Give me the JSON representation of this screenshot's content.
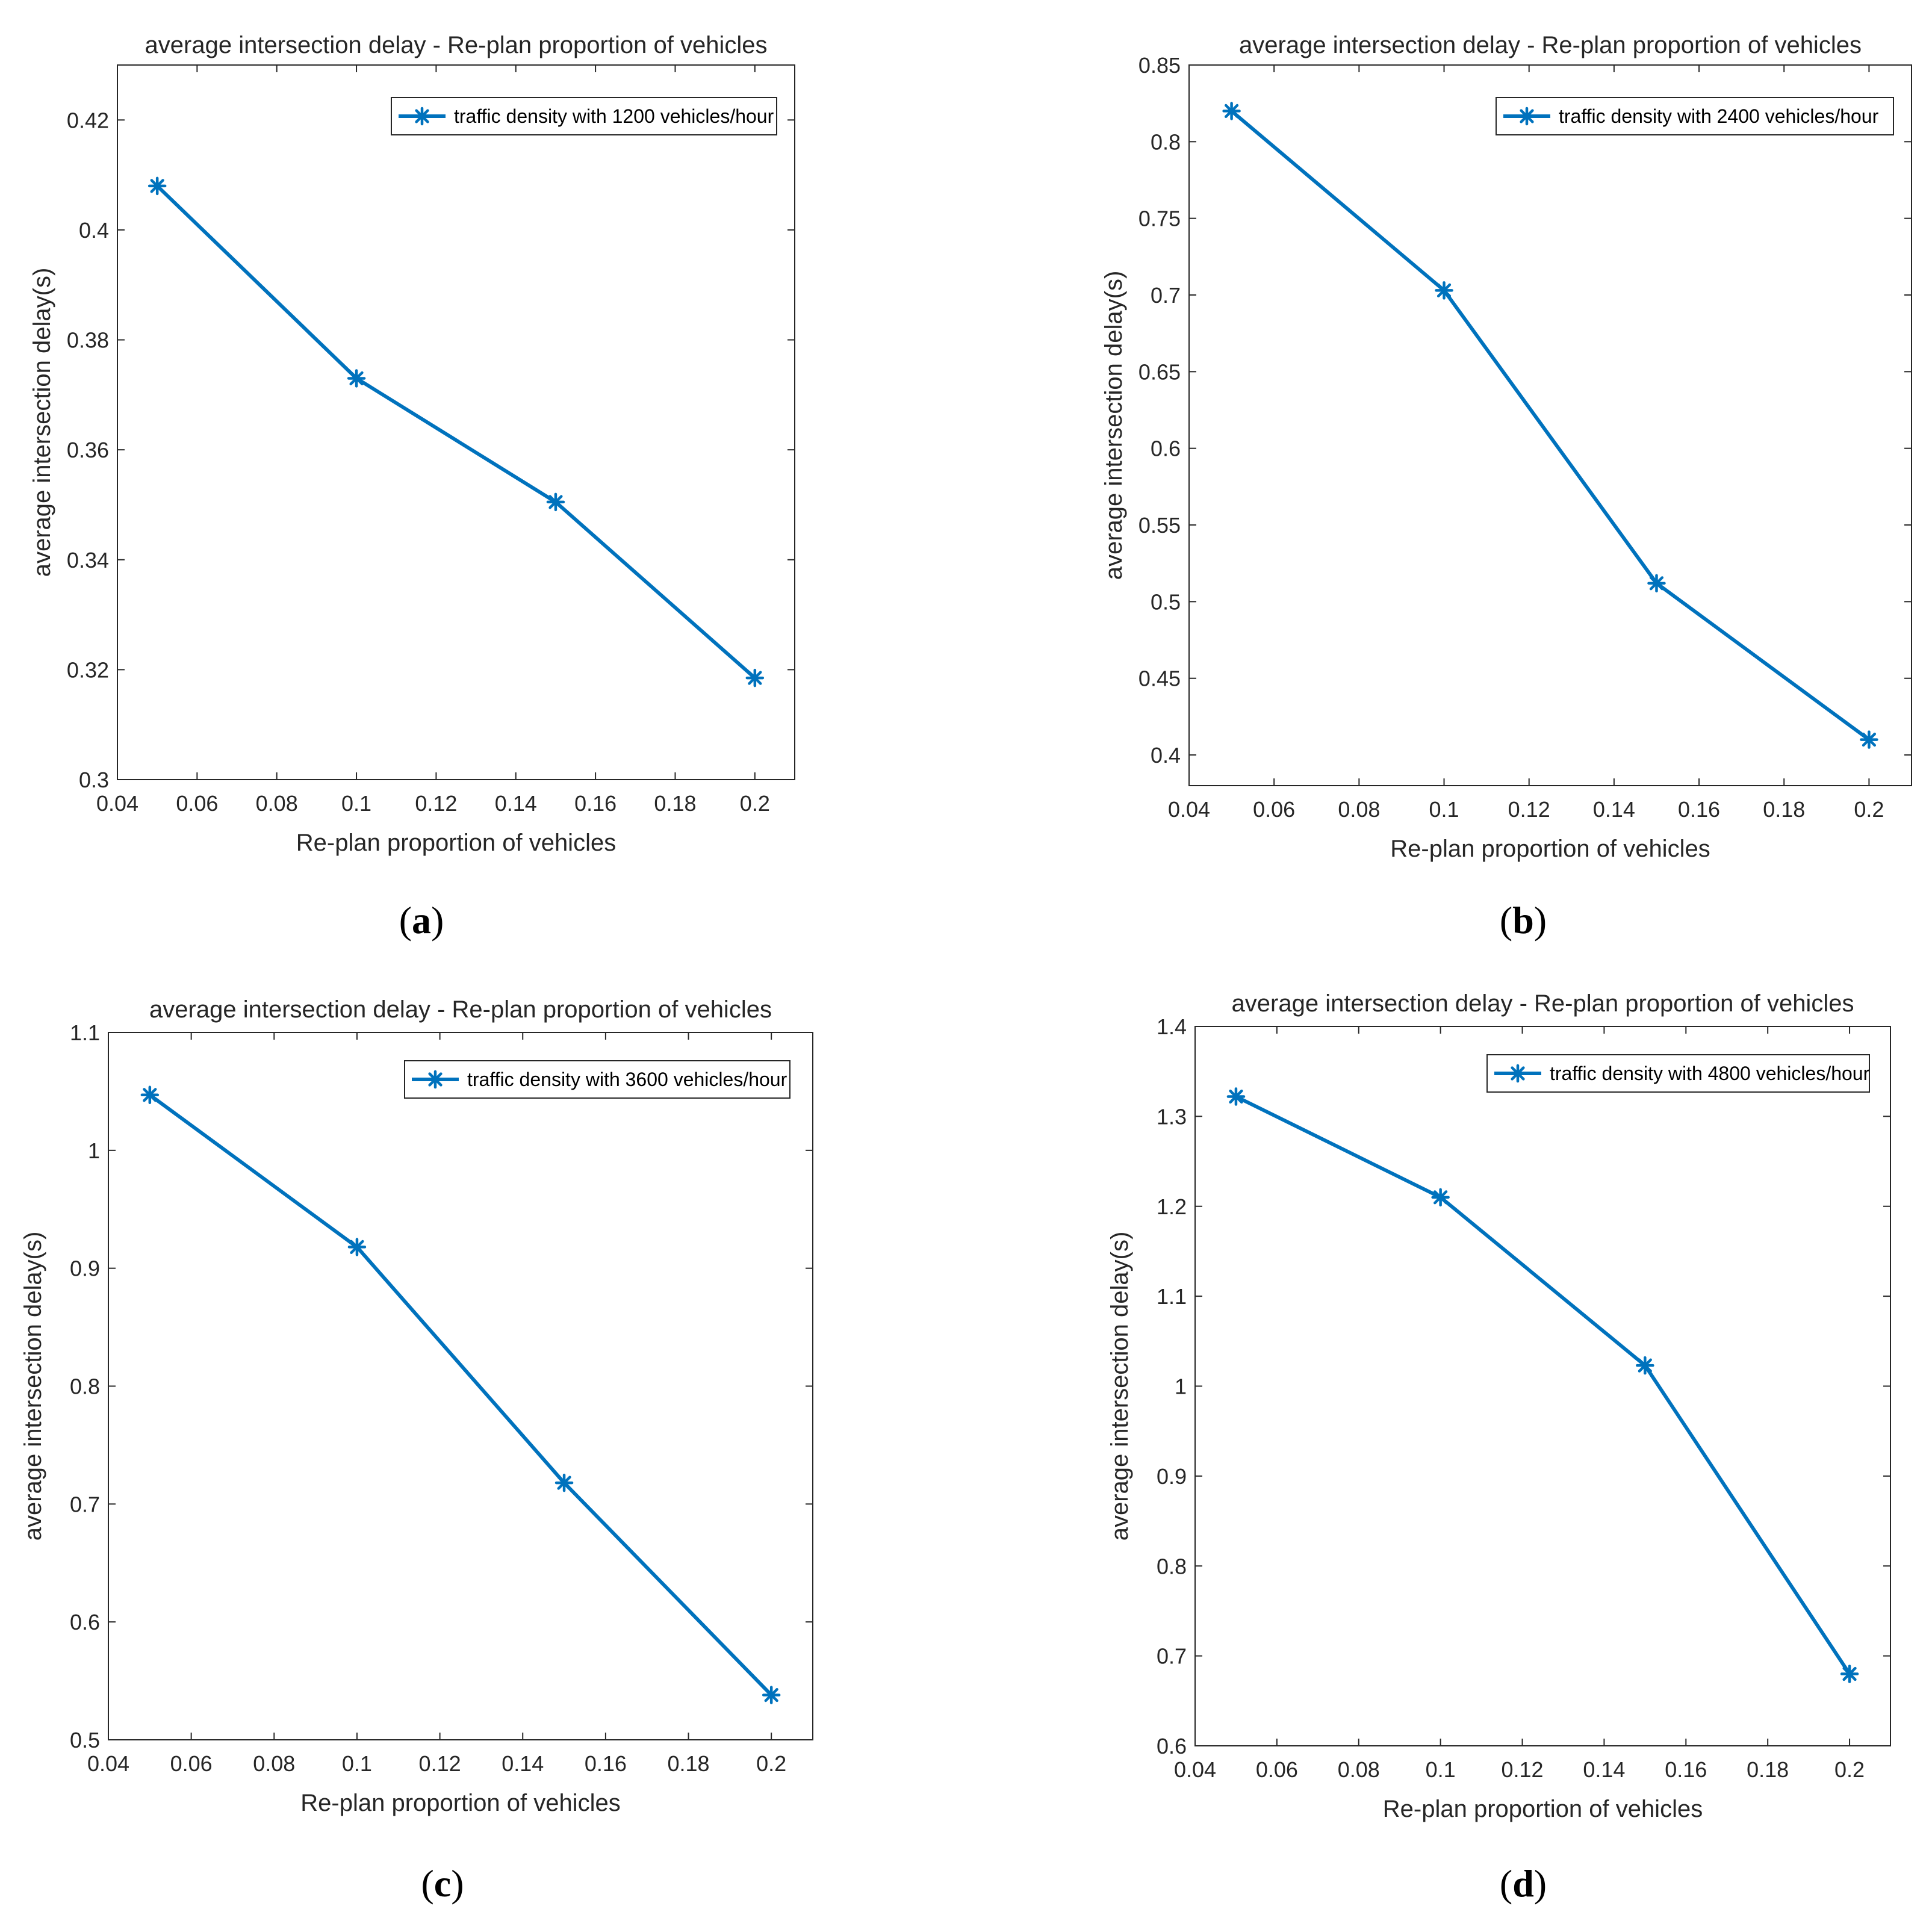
{
  "colors": {
    "series": "#0072BD",
    "axes": "#262626",
    "background": "#ffffff"
  },
  "chart_data": [
    {
      "panel": "(a)",
      "type": "line",
      "title": "average intersection delay - Re-plan proportion of vehicles",
      "xlabel": "Re-plan proportion of vehicles",
      "ylabel": "average intersection delay(s)",
      "xlim": [
        0.04,
        0.21
      ],
      "ylim": [
        0.3,
        0.43
      ],
      "xticks": [
        "0.04",
        "0.06",
        "0.08",
        "0.1",
        "0.12",
        "0.14",
        "0.16",
        "0.18",
        "0.2"
      ],
      "yticks": [
        "0.3",
        "0.32",
        "0.34",
        "0.36",
        "0.38",
        "0.4",
        "0.42"
      ],
      "legend_position": "top-right",
      "series": [
        {
          "name": "traffic density with 1200 vehicles/hour",
          "marker": "asterisk",
          "x": [
            0.05,
            0.1,
            0.15,
            0.2
          ],
          "y": [
            0.408,
            0.373,
            0.3505,
            0.3185
          ]
        }
      ]
    },
    {
      "panel": "(b)",
      "type": "line",
      "title": "average intersection delay - Re-plan proportion of vehicles",
      "xlabel": "Re-plan proportion of vehicles",
      "ylabel": "average intersection delay(s)",
      "xlim": [
        0.04,
        0.21
      ],
      "ylim": [
        0.38,
        0.85
      ],
      "xticks": [
        "0.04",
        "0.06",
        "0.08",
        "0.1",
        "0.12",
        "0.14",
        "0.16",
        "0.18",
        "0.2"
      ],
      "yticks": [
        "0.4",
        "0.45",
        "0.5",
        "0.55",
        "0.6",
        "0.65",
        "0.7",
        "0.75",
        "0.8",
        "0.85"
      ],
      "legend_position": "top-right",
      "series": [
        {
          "name": "traffic density with 2400 vehicles/hour",
          "marker": "asterisk",
          "x": [
            0.05,
            0.1,
            0.15,
            0.2
          ],
          "y": [
            0.82,
            0.703,
            0.512,
            0.41
          ]
        }
      ]
    },
    {
      "panel": "(c)",
      "type": "line",
      "title": "average intersection delay - Re-plan proportion of vehicles",
      "xlabel": "Re-plan proportion of vehicles",
      "ylabel": "average intersection delay(s)",
      "xlim": [
        0.04,
        0.21
      ],
      "ylim": [
        0.5,
        1.1
      ],
      "xticks": [
        "0.04",
        "0.06",
        "0.08",
        "0.1",
        "0.12",
        "0.14",
        "0.16",
        "0.18",
        "0.2"
      ],
      "yticks": [
        "0.5",
        "0.6",
        "0.7",
        "0.8",
        "0.9",
        "1",
        "1.1"
      ],
      "legend_position": "top-right",
      "series": [
        {
          "name": "traffic density with 3600 vehicles/hour",
          "marker": "asterisk",
          "x": [
            0.05,
            0.1,
            0.15,
            0.2
          ],
          "y": [
            1.047,
            0.918,
            0.718,
            0.538
          ]
        }
      ]
    },
    {
      "panel": "(d)",
      "type": "line",
      "title": "average intersection delay - Re-plan proportion of vehicles",
      "xlabel": "Re-plan proportion of vehicles",
      "ylabel": "average intersection delay(s)",
      "xlim": [
        0.04,
        0.21
      ],
      "ylim": [
        0.6,
        1.4
      ],
      "xticks": [
        "0.04",
        "0.06",
        "0.08",
        "0.1",
        "0.12",
        "0.14",
        "0.16",
        "0.18",
        "0.2"
      ],
      "yticks": [
        "0.6",
        "0.7",
        "0.8",
        "0.9",
        "1",
        "1.1",
        "1.2",
        "1.3",
        "1.4"
      ],
      "legend_position": "top-right",
      "series": [
        {
          "name": "traffic density with 4800 vehicles/hour",
          "marker": "asterisk",
          "x": [
            0.05,
            0.1,
            0.15,
            0.2
          ],
          "y": [
            1.322,
            1.21,
            1.023,
            0.68
          ]
        }
      ]
    }
  ]
}
